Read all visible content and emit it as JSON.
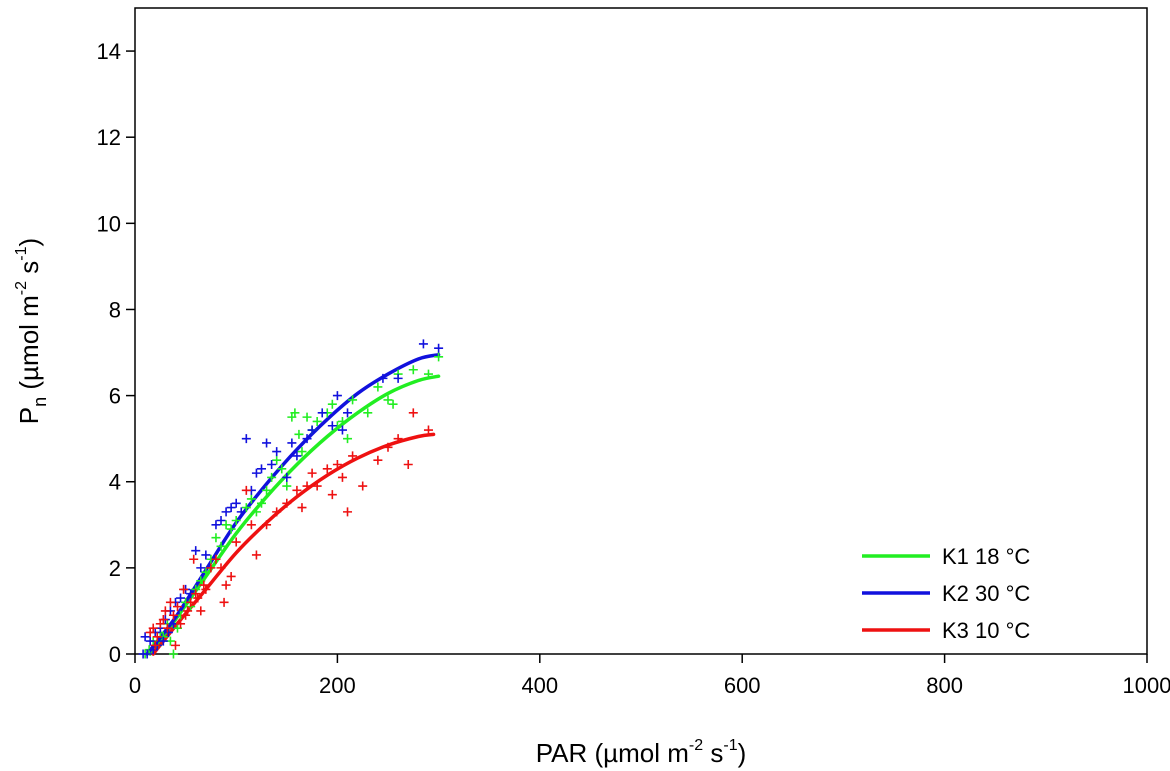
{
  "chart_data": {
    "type": "scatter",
    "title": "",
    "xlabel": {
      "base": "PAR (µmol m",
      "sup1": "-2",
      "mid": " s",
      "sup2": "-1",
      "end": ")"
    },
    "ylabel": {
      "pre": "P",
      "sub": "n",
      "base": " (µmol m",
      "sup1": "-2",
      "mid": " s",
      "sup2": "-1",
      "end": ")"
    },
    "xlim": [
      0,
      1000
    ],
    "ylim": [
      0,
      15
    ],
    "xticks": [
      0,
      200,
      400,
      600,
      800,
      1000
    ],
    "yticks": [
      0,
      2,
      4,
      6,
      8,
      10,
      12,
      14
    ],
    "xtick_labels": [
      "0",
      "200",
      "400",
      "600",
      "800",
      "1000"
    ],
    "ytick_labels": [
      "0",
      "2",
      "4",
      "6",
      "8",
      "10",
      "12",
      "14"
    ],
    "grid": false,
    "legend_position": "bottom-right",
    "series": [
      {
        "name": "K1 18 °C",
        "color": "#22ee22",
        "fit": [
          [
            15,
            0
          ],
          [
            40,
            0.8
          ],
          [
            70,
            1.8
          ],
          [
            100,
            2.8
          ],
          [
            130,
            3.65
          ],
          [
            160,
            4.4
          ],
          [
            190,
            5.05
          ],
          [
            220,
            5.6
          ],
          [
            250,
            6.05
          ],
          [
            280,
            6.35
          ],
          [
            300,
            6.45
          ]
        ],
        "points": [
          [
            10,
            0
          ],
          [
            14,
            0.1
          ],
          [
            18,
            0.3
          ],
          [
            22,
            0.2
          ],
          [
            25,
            0.5
          ],
          [
            28,
            0.4
          ],
          [
            32,
            0.7
          ],
          [
            35,
            0.3
          ],
          [
            38,
            0
          ],
          [
            42,
            0.6
          ],
          [
            45,
            0.9
          ],
          [
            50,
            1.2
          ],
          [
            55,
            1.1
          ],
          [
            60,
            1.5
          ],
          [
            65,
            1.7
          ],
          [
            70,
            1.9
          ],
          [
            75,
            2.2
          ],
          [
            80,
            2.7
          ],
          [
            85,
            2.5
          ],
          [
            90,
            3.0
          ],
          [
            95,
            2.9
          ],
          [
            100,
            3.1
          ],
          [
            110,
            3.4
          ],
          [
            115,
            3.6
          ],
          [
            120,
            3.3
          ],
          [
            125,
            3.5
          ],
          [
            130,
            3.8
          ],
          [
            135,
            4.1
          ],
          [
            140,
            4.5
          ],
          [
            145,
            4.3
          ],
          [
            150,
            3.9
          ],
          [
            155,
            5.5
          ],
          [
            158,
            5.6
          ],
          [
            162,
            5.1
          ],
          [
            165,
            4.7
          ],
          [
            170,
            5.5
          ],
          [
            175,
            5.2
          ],
          [
            180,
            5.4
          ],
          [
            190,
            5.6
          ],
          [
            195,
            5.8
          ],
          [
            200,
            5.3
          ],
          [
            205,
            5.4
          ],
          [
            210,
            5.0
          ],
          [
            215,
            5.9
          ],
          [
            230,
            5.6
          ],
          [
            240,
            6.2
          ],
          [
            250,
            5.9
          ],
          [
            255,
            5.8
          ],
          [
            260,
            6.5
          ],
          [
            275,
            6.6
          ],
          [
            290,
            6.5
          ],
          [
            300,
            6.9
          ]
        ]
      },
      {
        "name": "K2 30 °C",
        "color": "#1111dd",
        "fit": [
          [
            12,
            0
          ],
          [
            40,
            0.85
          ],
          [
            70,
            1.95
          ],
          [
            100,
            3.05
          ],
          [
            130,
            3.95
          ],
          [
            160,
            4.75
          ],
          [
            190,
            5.45
          ],
          [
            220,
            6.05
          ],
          [
            250,
            6.5
          ],
          [
            280,
            6.85
          ],
          [
            300,
            6.95
          ]
        ],
        "points": [
          [
            8,
            0
          ],
          [
            10,
            0.4
          ],
          [
            12,
            0
          ],
          [
            15,
            0.3
          ],
          [
            18,
            0.1
          ],
          [
            20,
            0.5
          ],
          [
            22,
            0.2
          ],
          [
            25,
            0.6
          ],
          [
            28,
            0.3
          ],
          [
            30,
            0.8
          ],
          [
            33,
            0.5
          ],
          [
            35,
            1.0
          ],
          [
            38,
            0.7
          ],
          [
            40,
            1.2
          ],
          [
            45,
            1.3
          ],
          [
            50,
            1.5
          ],
          [
            55,
            1.4
          ],
          [
            60,
            2.4
          ],
          [
            65,
            2.0
          ],
          [
            70,
            2.3
          ],
          [
            80,
            3.0
          ],
          [
            85,
            3.1
          ],
          [
            90,
            3.3
          ],
          [
            95,
            3.4
          ],
          [
            100,
            3.5
          ],
          [
            105,
            3.3
          ],
          [
            110,
            5.0
          ],
          [
            115,
            3.8
          ],
          [
            120,
            4.2
          ],
          [
            125,
            4.3
          ],
          [
            130,
            4.9
          ],
          [
            135,
            4.4
          ],
          [
            140,
            4.7
          ],
          [
            150,
            4.1
          ],
          [
            155,
            4.9
          ],
          [
            160,
            4.6
          ],
          [
            170,
            5.0
          ],
          [
            175,
            5.2
          ],
          [
            185,
            5.6
          ],
          [
            195,
            5.3
          ],
          [
            200,
            6.0
          ],
          [
            205,
            5.2
          ],
          [
            210,
            5.6
          ],
          [
            245,
            6.4
          ],
          [
            260,
            6.4
          ],
          [
            285,
            7.2
          ],
          [
            300,
            7.1
          ]
        ]
      },
      {
        "name": "K3 10 °C",
        "color": "#ee1111",
        "fit": [
          [
            18,
            0
          ],
          [
            40,
            0.65
          ],
          [
            70,
            1.5
          ],
          [
            100,
            2.35
          ],
          [
            130,
            3.05
          ],
          [
            160,
            3.65
          ],
          [
            190,
            4.15
          ],
          [
            220,
            4.55
          ],
          [
            250,
            4.85
          ],
          [
            280,
            5.05
          ],
          [
            295,
            5.1
          ]
        ],
        "points": [
          [
            15,
            0.5
          ],
          [
            18,
            0.6
          ],
          [
            20,
            0.2
          ],
          [
            22,
            0.4
          ],
          [
            25,
            0.7
          ],
          [
            28,
            0.8
          ],
          [
            30,
            1.0
          ],
          [
            32,
            0.6
          ],
          [
            35,
            1.2
          ],
          [
            38,
            0.9
          ],
          [
            40,
            0.2
          ],
          [
            42,
            1.1
          ],
          [
            45,
            0.7
          ],
          [
            48,
            1.5
          ],
          [
            50,
            0.9
          ],
          [
            52,
            1.0
          ],
          [
            55,
            1.2
          ],
          [
            58,
            2.2
          ],
          [
            60,
            1.4
          ],
          [
            62,
            1.3
          ],
          [
            65,
            1.0
          ],
          [
            68,
            1.6
          ],
          [
            70,
            1.5
          ],
          [
            75,
            2.0
          ],
          [
            80,
            2.2
          ],
          [
            85,
            2.0
          ],
          [
            88,
            1.2
          ],
          [
            90,
            1.6
          ],
          [
            95,
            1.8
          ],
          [
            100,
            2.6
          ],
          [
            110,
            3.8
          ],
          [
            115,
            3.0
          ],
          [
            120,
            2.3
          ],
          [
            130,
            3.0
          ],
          [
            140,
            3.3
          ],
          [
            150,
            3.5
          ],
          [
            160,
            3.8
          ],
          [
            165,
            3.4
          ],
          [
            170,
            3.9
          ],
          [
            175,
            4.2
          ],
          [
            180,
            3.9
          ],
          [
            190,
            4.3
          ],
          [
            195,
            3.7
          ],
          [
            200,
            4.4
          ],
          [
            205,
            4.1
          ],
          [
            210,
            3.3
          ],
          [
            215,
            4.6
          ],
          [
            225,
            3.9
          ],
          [
            240,
            4.5
          ],
          [
            250,
            4.8
          ],
          [
            260,
            5.0
          ],
          [
            270,
            4.4
          ],
          [
            275,
            5.6
          ],
          [
            290,
            5.2
          ]
        ]
      }
    ]
  }
}
